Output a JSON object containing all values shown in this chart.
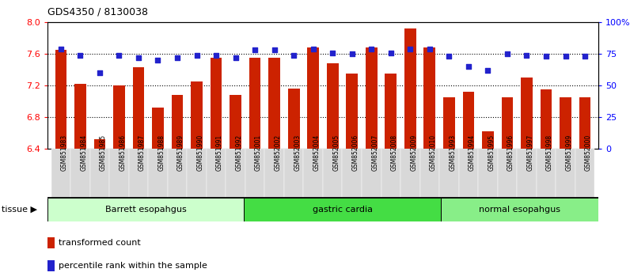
{
  "title": "GDS4350 / 8130038",
  "samples": [
    "GSM851983",
    "GSM851984",
    "GSM851985",
    "GSM851986",
    "GSM851987",
    "GSM851988",
    "GSM851989",
    "GSM851990",
    "GSM851991",
    "GSM851992",
    "GSM852001",
    "GSM852002",
    "GSM852003",
    "GSM852004",
    "GSM852005",
    "GSM852006",
    "GSM852007",
    "GSM852008",
    "GSM852009",
    "GSM852010",
    "GSM851993",
    "GSM851994",
    "GSM851995",
    "GSM851996",
    "GSM851997",
    "GSM851998",
    "GSM851999",
    "GSM852000"
  ],
  "bar_values": [
    7.65,
    7.22,
    6.52,
    7.2,
    7.43,
    6.92,
    7.08,
    7.25,
    7.55,
    7.08,
    7.55,
    7.55,
    7.16,
    7.68,
    7.48,
    7.35,
    7.68,
    7.35,
    7.92,
    7.68,
    7.05,
    7.12,
    6.62,
    7.05,
    7.3,
    7.15,
    7.05,
    7.05
  ],
  "percentile_values": [
    79,
    74,
    60,
    74,
    72,
    70,
    72,
    74,
    74,
    72,
    78,
    78,
    74,
    79,
    76,
    75,
    79,
    76,
    79,
    79,
    73,
    65,
    62,
    75,
    74,
    73,
    73,
    73
  ],
  "groups": [
    {
      "label": "Barrett esopahgus",
      "start": 0,
      "end": 10,
      "color": "#ccffcc"
    },
    {
      "label": "gastric cardia",
      "start": 10,
      "end": 20,
      "color": "#44dd44"
    },
    {
      "label": "normal esopahgus",
      "start": 20,
      "end": 28,
      "color": "#88ee88"
    }
  ],
  "ylim_left": [
    6.4,
    8.0
  ],
  "ylim_right": [
    0,
    100
  ],
  "yticks_left": [
    6.4,
    6.8,
    7.2,
    7.6,
    8.0
  ],
  "yticks_right": [
    0,
    25,
    50,
    75,
    100
  ],
  "ytick_labels_right": [
    "0",
    "25",
    "50",
    "75",
    "100%"
  ],
  "bar_color": "#cc2200",
  "percentile_color": "#2222cc",
  "bar_width": 0.6,
  "legend_items": [
    {
      "label": "transformed count",
      "color": "#cc2200"
    },
    {
      "label": "percentile rank within the sample",
      "color": "#2222cc"
    }
  ]
}
